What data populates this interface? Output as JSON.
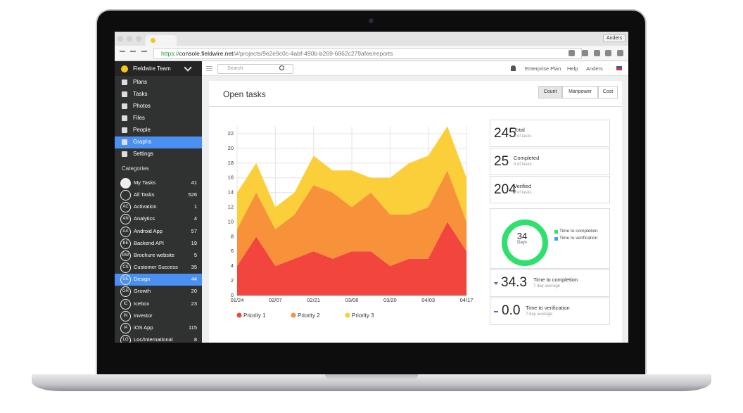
{
  "browser": {
    "tab_user": "Anders",
    "url_scheme": "https://",
    "url_host": "console.fieldwire.net",
    "url_path": "/#/projects/9e2e9c0c-4abf-490b-b269-6862c279afee/reports"
  },
  "sidebar": {
    "team": "Fieldwire Team",
    "nav": [
      "Plans",
      "Tasks",
      "Photos",
      "Files",
      "People",
      "Graphs",
      "Settings"
    ],
    "categories_title": "Categories",
    "categories": [
      {
        "name": "My Tasks",
        "count": 41
      },
      {
        "name": "All Tasks",
        "count": 526
      },
      {
        "badge": "AC",
        "name": "Activation",
        "count": 1
      },
      {
        "badge": "AN",
        "name": "Analytics",
        "count": 4
      },
      {
        "badge": "AA",
        "name": "Android App",
        "count": 57
      },
      {
        "badge": "BE",
        "name": "Backend API",
        "count": 19
      },
      {
        "badge": "BW",
        "name": "Brochure website",
        "count": 5
      },
      {
        "badge": "CS",
        "name": "Customer Success",
        "count": 35
      },
      {
        "badge": "DE",
        "name": "Design",
        "count": 44
      },
      {
        "badge": "GR",
        "name": "Growth",
        "count": 20
      },
      {
        "badge": "IC",
        "name": "Icebox",
        "count": 23
      },
      {
        "badge": "IN",
        "name": "Investor"
      },
      {
        "badge": "IA",
        "name": "iOS App",
        "count": 115
      },
      {
        "badge": "LO",
        "name": "Loc/International",
        "count": 8
      }
    ]
  },
  "topbar": {
    "search_placeholder": "Search",
    "links": [
      "Enterprise Plan",
      "Help",
      "Anders"
    ]
  },
  "report": {
    "title": "Open tasks",
    "tabs": [
      "Count",
      "Manpower",
      "Cost"
    ],
    "stats": [
      {
        "value": 245,
        "label": "Total",
        "sub": "# of tasks"
      },
      {
        "value": 25,
        "label": "Completed",
        "sub": "# of tasks"
      },
      {
        "value": 204,
        "label": "Verified",
        "sub": "# of tasks"
      }
    ],
    "donut": {
      "value": 34,
      "unit": "Days",
      "legend": [
        {
          "name": "Time to completion",
          "color": "#2ee06c"
        },
        {
          "name": "Time to verification",
          "color": "#3aa7e0"
        }
      ]
    },
    "metrics": [
      {
        "value": "34.3",
        "label": "Time to completion",
        "sub": "7 day average"
      },
      {
        "value": "0.0",
        "label": "Time to verification",
        "sub": "7 day average"
      }
    ]
  },
  "chart_data": {
    "type": "stacked-area",
    "categories": [
      "01/24",
      null,
      "02/07",
      null,
      "02/21",
      null,
      "03/06",
      null,
      "03/20",
      null,
      "04/03",
      null,
      "04/17"
    ],
    "series": [
      {
        "name": "Priority 1",
        "color": "#f2453d",
        "values": [
          4,
          8,
          4,
          5,
          6,
          5,
          6,
          6,
          4,
          5,
          5,
          10,
          6
        ]
      },
      {
        "name": "Priority 2",
        "color": "#f7913a",
        "values": [
          5,
          6,
          5,
          6,
          9,
          9,
          6,
          8,
          7,
          6,
          7,
          7,
          4
        ]
      },
      {
        "name": "Priority 3",
        "color": "#fbcf3a",
        "values": [
          5,
          4,
          3,
          3,
          4,
          3,
          5,
          2,
          5,
          7,
          7,
          6,
          6
        ]
      }
    ],
    "ylim": [
      0,
      23
    ],
    "yticks": [
      0,
      2,
      4,
      6,
      8,
      10,
      12,
      14,
      16,
      18,
      20,
      22
    ],
    "grid": true
  }
}
